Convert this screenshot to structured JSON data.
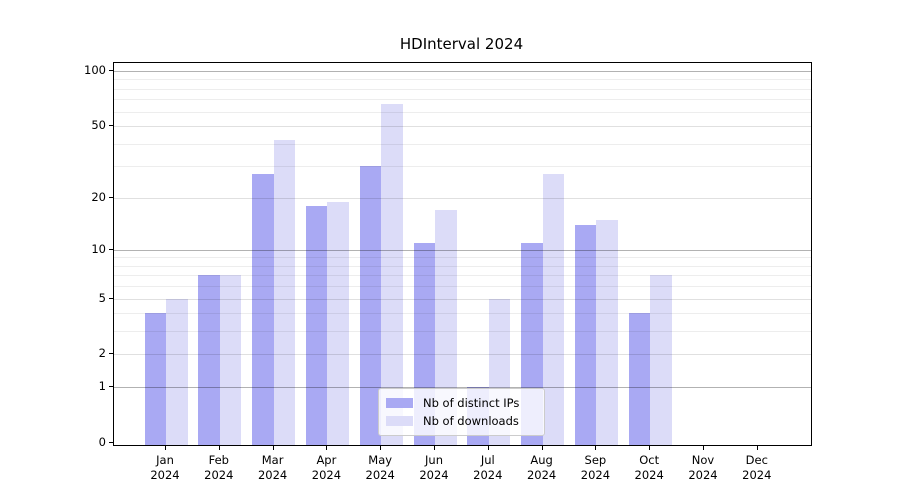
{
  "title": "HDInterval 2024",
  "chart_data": {
    "type": "bar",
    "title": "HDInterval 2024",
    "categories": [
      "Jan 2024",
      "Feb 2024",
      "Mar 2024",
      "Apr 2024",
      "May 2024",
      "Jun 2024",
      "Jul 2024",
      "Aug 2024",
      "Sep 2024",
      "Oct 2024",
      "Nov 2024",
      "Dec 2024"
    ],
    "series": [
      {
        "name": "Nb of distinct IPs",
        "color": "#a9a9f3",
        "values": [
          4,
          7,
          27,
          18,
          30,
          11,
          1,
          11,
          14,
          4,
          0,
          0
        ]
      },
      {
        "name": "Nb of downloads",
        "color": "#dcdcf8",
        "values": [
          5,
          7,
          42,
          19,
          66,
          17,
          5,
          27,
          15,
          7,
          0,
          0
        ]
      }
    ],
    "xlabel": "",
    "ylabel": "",
    "yscale": "log1p",
    "ylim": [
      0,
      110
    ],
    "yticks": [
      0,
      1,
      2,
      5,
      10,
      20,
      50,
      100
    ],
    "ytick_labels": [
      "0",
      "1",
      "2",
      "5",
      "10",
      "20",
      "50",
      "100"
    ],
    "major_grid_values": [
      1,
      10,
      100
    ],
    "mid_grid_values": [
      2,
      5,
      20,
      50
    ],
    "minor_grid_values": [
      3,
      4,
      6,
      7,
      8,
      9,
      30,
      40,
      60,
      70,
      80,
      90
    ],
    "grid": true,
    "legend_position": "inside-lower-center"
  },
  "colors": {
    "bar_distinct_ips": "#a9a9f3",
    "bar_downloads": "#dcdcf8",
    "grid_major": "rgba(0,0,0,0.30)",
    "grid_mid": "rgba(0,0,0,0.12)",
    "grid_minor": "rgba(0,0,0,0.07)",
    "spine": "#000000",
    "legend_border": "#cccccc"
  }
}
